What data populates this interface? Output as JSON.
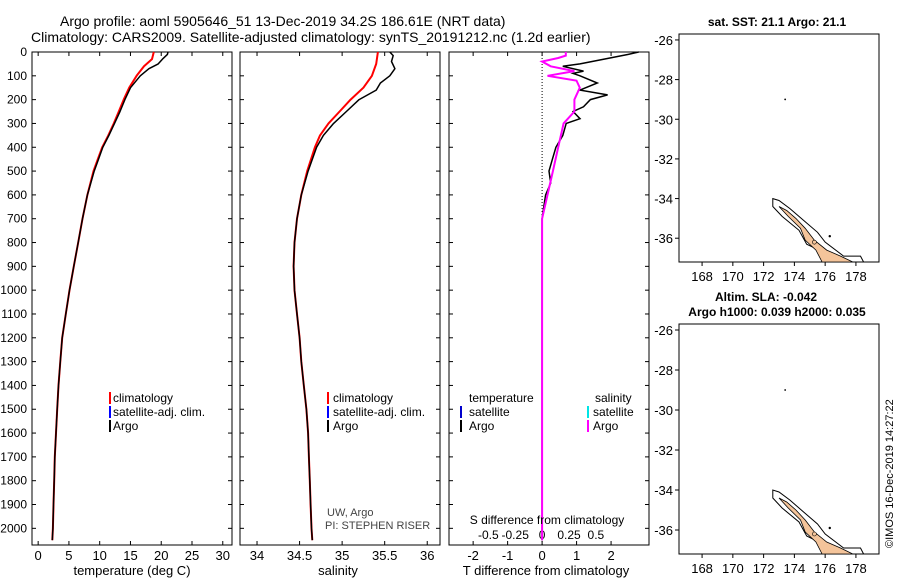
{
  "title_line1": "Argo profile: aoml 5905646_51 13-Dec-2019 34.2S 186.61E (NRT data)",
  "title_line2": "Climatology: CARS2009. Satellite-adjusted climatology: synTS_20191212.nc (1.2d earlier)",
  "watermark": "©IMOS 16-Dec-2019 14:27:22",
  "colors": {
    "climatology": "#ff0000",
    "satellite": "#0000ff",
    "argo": "#000000",
    "sat_t": "#0000cc",
    "sat_s": "#00e5e5",
    "argo_s": "#ff00ff",
    "land": "#f4c49a"
  },
  "depth_axis": {
    "ylim": [
      0,
      2070
    ],
    "ticks": [
      "0",
      "100",
      "200",
      "300",
      "400",
      "500",
      "600",
      "700",
      "800",
      "900",
      "1000",
      "1100",
      "1200",
      "1300",
      "1400",
      "1500",
      "1600",
      "1700",
      "1800",
      "1900",
      "2000"
    ]
  },
  "panel_t": {
    "xlabel": "temperature (deg C)",
    "xticks": [
      "0",
      "5",
      "10",
      "15",
      "20",
      "25",
      "30"
    ],
    "legend": [
      "climatology",
      "satellite-adj. clim.",
      "Argo"
    ]
  },
  "panel_s": {
    "xlabel": "salinity",
    "xticks": [
      "34",
      "34.5",
      "35",
      "35.5",
      "36"
    ],
    "legend": [
      "climatology",
      "satellite-adj. clim.",
      "Argo"
    ],
    "note1": "UW, Argo",
    "note2": "PI: STEPHEN RISER"
  },
  "panel_d": {
    "xlabel": "T difference from climatology",
    "toplabel": "S difference from climatology",
    "xticks": [
      "-2",
      "-1",
      "0",
      "1",
      "2"
    ],
    "sticks": [
      "-0.5",
      "-0.25",
      "0",
      "0.25",
      "0.5"
    ],
    "leg_head_t": "temperature",
    "leg_head_s": "salinity",
    "leg_sat": "satellite",
    "leg_argo": "Argo"
  },
  "map1": {
    "title": "sat. SST: 21.1 Argo: 21.1",
    "yticks": [
      "-26",
      "-28",
      "-30",
      "-32",
      "-34",
      "-36"
    ],
    "xticks": [
      "168",
      "170",
      "172",
      "174",
      "176",
      "178"
    ]
  },
  "map2": {
    "title1": "Altim. SLA: -0.042",
    "title2": "Argo h1000: 0.039 h2000: 0.035",
    "yticks": [
      "-26",
      "-28",
      "-30",
      "-32",
      "-34",
      "-36"
    ],
    "xticks": [
      "168",
      "170",
      "172",
      "174",
      "176",
      "178"
    ]
  },
  "chart_data": [
    {
      "type": "line",
      "name": "temperature profile",
      "xlim": [
        -1,
        31.5
      ],
      "ylim": [
        0,
        2070
      ],
      "series": [
        {
          "name": "climatology",
          "depth": [
            0,
            30,
            60,
            100,
            150,
            200,
            250,
            300,
            350,
            400,
            450,
            500,
            600,
            700,
            800,
            900,
            1000,
            1100,
            1200,
            1300,
            1400,
            1500,
            1600,
            1700,
            1800,
            1900,
            2000,
            2050
          ],
          "values": [
            18.8,
            18.5,
            17.2,
            16.0,
            14.8,
            13.9,
            13.1,
            12.3,
            11.4,
            10.4,
            9.7,
            9.0,
            8.0,
            7.2,
            6.5,
            5.8,
            5.1,
            4.5,
            3.9,
            3.6,
            3.3,
            3.1,
            2.9,
            2.7,
            2.6,
            2.5,
            2.4,
            2.3
          ]
        },
        {
          "name": "Argo",
          "depth": [
            0,
            10,
            30,
            50,
            70,
            100,
            150,
            200,
            250,
            300,
            350,
            400,
            450,
            500,
            600,
            700,
            800,
            900,
            1000,
            1100,
            1200,
            1300,
            1400,
            1500,
            1600,
            1700,
            1800,
            1900,
            2000,
            2050
          ],
          "values": [
            21.1,
            21.0,
            20.2,
            19.5,
            18.0,
            16.6,
            15.0,
            14.1,
            13.3,
            12.4,
            11.5,
            10.5,
            9.8,
            9.1,
            8.0,
            7.2,
            6.5,
            5.8,
            5.1,
            4.5,
            3.9,
            3.6,
            3.3,
            3.1,
            2.9,
            2.7,
            2.6,
            2.5,
            2.4,
            2.3
          ]
        }
      ]
    },
    {
      "type": "line",
      "name": "salinity profile",
      "xlim": [
        33.8,
        36.15
      ],
      "ylim": [
        0,
        2070
      ],
      "series": [
        {
          "name": "climatology",
          "depth": [
            0,
            50,
            100,
            150,
            200,
            250,
            300,
            350,
            400,
            500,
            600,
            700,
            800,
            900,
            1000,
            1100,
            1200,
            1300,
            1400,
            1500,
            1600,
            1700,
            1800,
            1900,
            2000,
            2050
          ],
          "values": [
            35.42,
            35.4,
            35.35,
            35.25,
            35.1,
            34.97,
            34.84,
            34.74,
            34.68,
            34.59,
            34.52,
            34.47,
            34.44,
            34.43,
            34.44,
            34.47,
            34.5,
            34.52,
            34.55,
            34.58,
            34.6,
            34.61,
            34.62,
            34.63,
            34.64,
            34.65
          ]
        },
        {
          "name": "Argo",
          "depth": [
            0,
            15,
            40,
            70,
            100,
            130,
            160,
            200,
            250,
            300,
            350,
            400,
            500,
            600,
            700,
            800,
            900,
            1000,
            1100,
            1200,
            1300,
            1400,
            1500,
            1600,
            1700,
            1800,
            1900,
            2000,
            2050
          ],
          "values": [
            35.56,
            35.6,
            35.58,
            35.62,
            35.56,
            35.45,
            35.4,
            35.2,
            35.05,
            34.9,
            34.78,
            34.7,
            34.6,
            34.52,
            34.47,
            34.44,
            34.43,
            34.44,
            34.47,
            34.5,
            34.52,
            34.55,
            34.58,
            34.6,
            34.61,
            34.62,
            34.63,
            34.64,
            34.65
          ]
        }
      ]
    },
    {
      "type": "line",
      "name": "difference from climatology",
      "xlim": [
        -2.7,
        3.1
      ],
      "ylim": [
        0,
        2070
      ],
      "series": [
        {
          "name": "temperature Argo",
          "depth": [
            0,
            10,
            30,
            50,
            60,
            80,
            90,
            100,
            130,
            160,
            180,
            200,
            230,
            250,
            280,
            300,
            350,
            400,
            450,
            500,
            550,
            600,
            650,
            700,
            800,
            1000,
            1400,
            1800,
            2050
          ],
          "values": [
            2.8,
            2.5,
            1.8,
            1.1,
            0.6,
            1.2,
            0.9,
            1.1,
            1.6,
            1.1,
            1.9,
            1.4,
            1.2,
            0.9,
            1.1,
            0.7,
            0.6,
            0.4,
            0.3,
            0.2,
            0.25,
            0.1,
            0.05,
            0.0,
            0.0,
            0.0,
            0.0,
            0.0,
            0.0
          ]
        },
        {
          "name": "salinity Argo",
          "depth": [
            0,
            15,
            25,
            40,
            60,
            80,
            100,
            120,
            150,
            200,
            250,
            300,
            400,
            500,
            600,
            700,
            800,
            900,
            1000,
            1200,
            1500,
            1800,
            2050
          ],
          "values": [
            0.22,
            0.22,
            0.15,
            0.0,
            0.08,
            0.3,
            0.05,
            0.32,
            0.35,
            0.3,
            0.3,
            0.2,
            0.15,
            0.1,
            0.05,
            0.0,
            0.0,
            0.0,
            0.0,
            0.0,
            0.0,
            0.0,
            0.0
          ]
        }
      ]
    }
  ]
}
